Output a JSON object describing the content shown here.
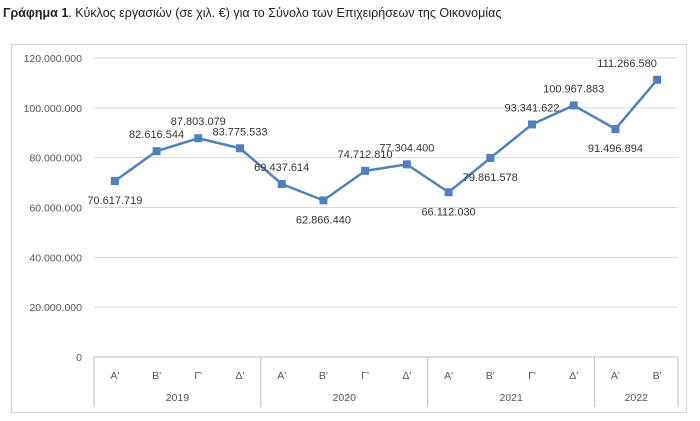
{
  "caption": {
    "prefix": "Γράφημα 1",
    "text": ". Κύκλος εργασιών (σε χιλ. €) για το Σύνολο των Επιχειρήσεων της Οικονομίας"
  },
  "chart_data": {
    "type": "line",
    "title": "",
    "xlabel": "",
    "ylabel": "",
    "ylim": [
      0,
      120000000
    ],
    "yticks": [
      0,
      20000000,
      40000000,
      60000000,
      80000000,
      100000000,
      120000000
    ],
    "ytick_labels": [
      "0",
      "20.000.000",
      "40.000.000",
      "60.000.000",
      "80.000.000",
      "100.000.000",
      "120.000.000"
    ],
    "grid": true,
    "line_color": "#4f81bd",
    "categories": [
      "Α'",
      "Β'",
      "Γ'",
      "Δ'",
      "Α'",
      "Β'",
      "Γ'",
      "Δ'",
      "Α'",
      "Β'",
      "Γ'",
      "Δ'",
      "Α'",
      "Β'"
    ],
    "groups": [
      {
        "label": "2019",
        "count": 4
      },
      {
        "label": "2020",
        "count": 4
      },
      {
        "label": "2021",
        "count": 4
      },
      {
        "label": "2022",
        "count": 2
      }
    ],
    "values": [
      70617719,
      82616544,
      87803079,
      83775533,
      69437614,
      62866440,
      74712810,
      77304400,
      66112030,
      79861578,
      93341622,
      100967883,
      91496894,
      111266580
    ],
    "data_labels": [
      "70.617.719",
      "82.616.544",
      "87.803.079",
      "83.775.533",
      "69.437.614",
      "62.866.440",
      "74.712.810",
      "77.304.400",
      "66.112.030",
      "79.861.578",
      "93.341.622",
      "100.967.883",
      "91.496.894",
      "111.266.580"
    ],
    "label_positions": [
      "below",
      "above",
      "above",
      "above",
      "above",
      "below",
      "above",
      "above",
      "below",
      "below",
      "above",
      "above",
      "below",
      "above"
    ]
  }
}
